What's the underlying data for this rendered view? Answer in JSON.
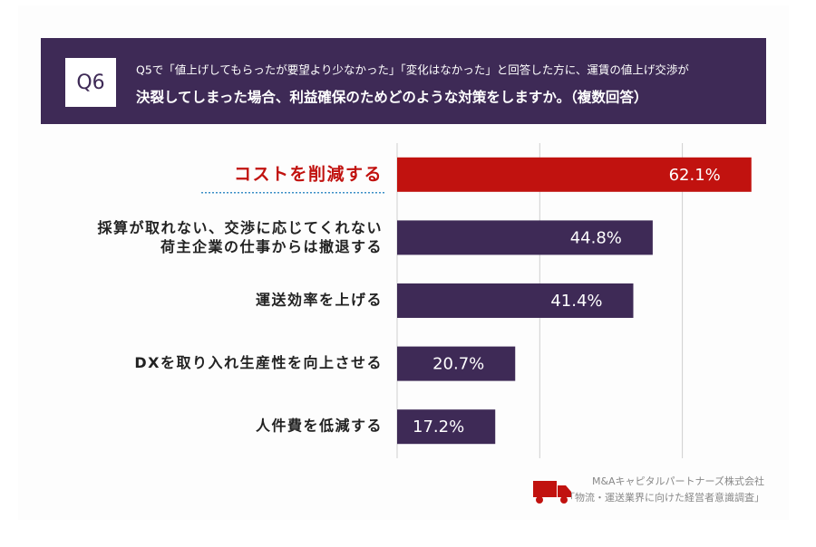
{
  "chart_data": {
    "type": "barh",
    "question_label": "Q6",
    "title_lines": [
      "Q5で「値上げしてもらったが要望より少なかった」「変化はなかった」と回答した方に、運賃の値上げ交渉が",
      "決裂してしまった場合、利益確保のためどのような対策をしますか。（複数回答）"
    ],
    "categories": [
      "コストを削減する",
      "採算が取れない、交渉に応じてくれない\n荷主企業の仕事からは撤退する",
      "運送効率を上げる",
      "DXを取り入れ生産性を向上させる",
      "人件費を低減する"
    ],
    "values": [
      62.1,
      44.8,
      41.4,
      20.7,
      17.2
    ],
    "value_labels": [
      "62.1%",
      "44.8%",
      "41.4%",
      "20.7%",
      "17.2%"
    ],
    "colors": [
      "#c1120f",
      "#3e2a56",
      "#3e2a56",
      "#3e2a56",
      "#3e2a56"
    ],
    "highlight_index": 0,
    "xlim": [
      0,
      65
    ],
    "xticks": [
      0,
      25,
      50
    ],
    "grid": true,
    "source_lines": [
      "M&Aキャピタルパートナーズ株式会社",
      "「物流・運送業界に向けた経営者意識調査」"
    ]
  }
}
